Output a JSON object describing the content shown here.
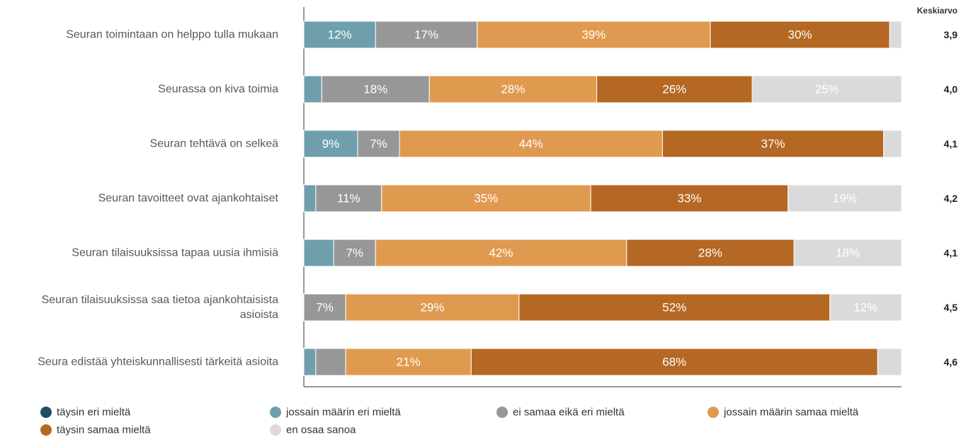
{
  "chart_data": {
    "type": "bar",
    "orientation": "horizontal",
    "stacked": true,
    "normalized_to": 100,
    "average_header": "Keskiarvo",
    "categories": [
      "Seuran toimintaan on helppo tulla mukaan",
      "Seurassa on kiva toimia",
      "Seuran tehtävä on selkeä",
      "Seuran tavoitteet ovat ajankohtaiset",
      "Seuran tilaisuuksissa tapaa uusia ihmisiä",
      "Seuran tilaisuuksissa saa tietoa ajankohtaisista asioista",
      "Seura edistää yhteiskunnallisesti tärkeitä asioita"
    ],
    "category_lines": [
      [
        "Seuran toimintaan on helppo tulla mukaan"
      ],
      [
        "Seurassa on kiva toimia"
      ],
      [
        "Seuran tehtävä on selkeä"
      ],
      [
        "Seuran tavoitteet ovat ajankohtaiset"
      ],
      [
        "Seuran tilaisuuksissa tapaa uusia ihmisiä"
      ],
      [
        "Seuran tilaisuuksissa saa tietoa ajankohtaisista",
        "asioista"
      ],
      [
        "Seura edistää yhteiskunnallisesti tärkeitä asioita"
      ]
    ],
    "series": [
      {
        "name": "täysin eri mieltä",
        "color": "#1f4e5f",
        "values": [
          0,
          0,
          0,
          0,
          0,
          0,
          0
        ]
      },
      {
        "name": "jossain määrin eri mieltä",
        "color": "#6f9fad",
        "values": [
          12,
          3,
          9,
          2,
          5,
          0,
          2
        ]
      },
      {
        "name": "ei samaa eikä eri mieltä",
        "color": "#979797",
        "values": [
          17,
          18,
          7,
          11,
          7,
          7,
          5
        ]
      },
      {
        "name": "jossain määrin samaa mieltä",
        "color": "#e09a50",
        "values": [
          39,
          28,
          44,
          35,
          42,
          29,
          21
        ]
      },
      {
        "name": "täysin samaa mieltä",
        "color": "#b46823",
        "values": [
          30,
          26,
          37,
          33,
          28,
          52,
          68
        ]
      },
      {
        "name": "en osaa sanoa",
        "color": "#dadada",
        "values": [
          2,
          25,
          3,
          19,
          18,
          12,
          4
        ]
      }
    ],
    "data_labels": [
      [
        "",
        "12%",
        "17%",
        "39%",
        "30%",
        ""
      ],
      [
        "",
        "",
        "18%",
        "28%",
        "26%",
        "25%"
      ],
      [
        "",
        "9%",
        "7%",
        "44%",
        "37%",
        ""
      ],
      [
        "",
        "",
        "11%",
        "35%",
        "33%",
        "19%"
      ],
      [
        "",
        "",
        "7%",
        "42%",
        "28%",
        "18%"
      ],
      [
        "",
        "",
        "7%",
        "29%",
        "52%",
        "12%"
      ],
      [
        "",
        "",
        "",
        "21%",
        "68%",
        ""
      ]
    ],
    "averages": [
      "3,9",
      "4,0",
      "4,1",
      "4,2",
      "4,1",
      "4,5",
      "4,6"
    ],
    "legend_position": "bottom",
    "grid": false
  }
}
